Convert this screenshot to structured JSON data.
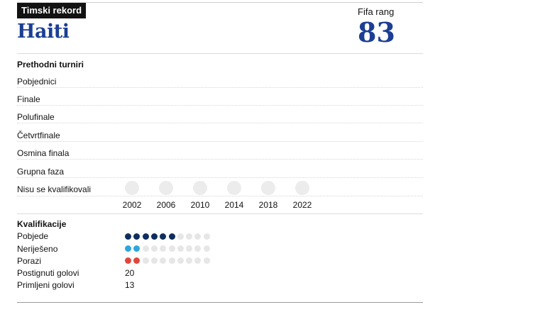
{
  "header": {
    "badge": "Timski rekord",
    "team": "Haiti",
    "rank_label": "Fifa rang",
    "rank_value": "83"
  },
  "tournaments": {
    "title": "Prethodni turniri",
    "rows": [
      "Pobjednici",
      "Finale",
      "Polufinale",
      "Četvrtfinale",
      "Osmina finala",
      "Grupna faza",
      "Nisu se kvalifikovali"
    ],
    "years": [
      "2002",
      "2006",
      "2010",
      "2014",
      "2018",
      "2022"
    ],
    "results": [
      6,
      6,
      6,
      6,
      6,
      6
    ]
  },
  "qualifying": {
    "title": "Kvalifikacije",
    "total_dots": 10,
    "wins": {
      "label": "Pobjede",
      "value": 6,
      "color": "#0f2d5e"
    },
    "draws": {
      "label": "Neriješeno",
      "value": 2,
      "color": "#2da6db"
    },
    "losses": {
      "label": "Porazi",
      "value": 2,
      "color": "#e0473c"
    },
    "goals_for": {
      "label": "Postignuti golovi",
      "value": "20"
    },
    "goals_against": {
      "label": "Primljeni golovi",
      "value": "13"
    }
  },
  "icons": {
    "result_marker": "circle",
    "match_marker": "dot"
  }
}
